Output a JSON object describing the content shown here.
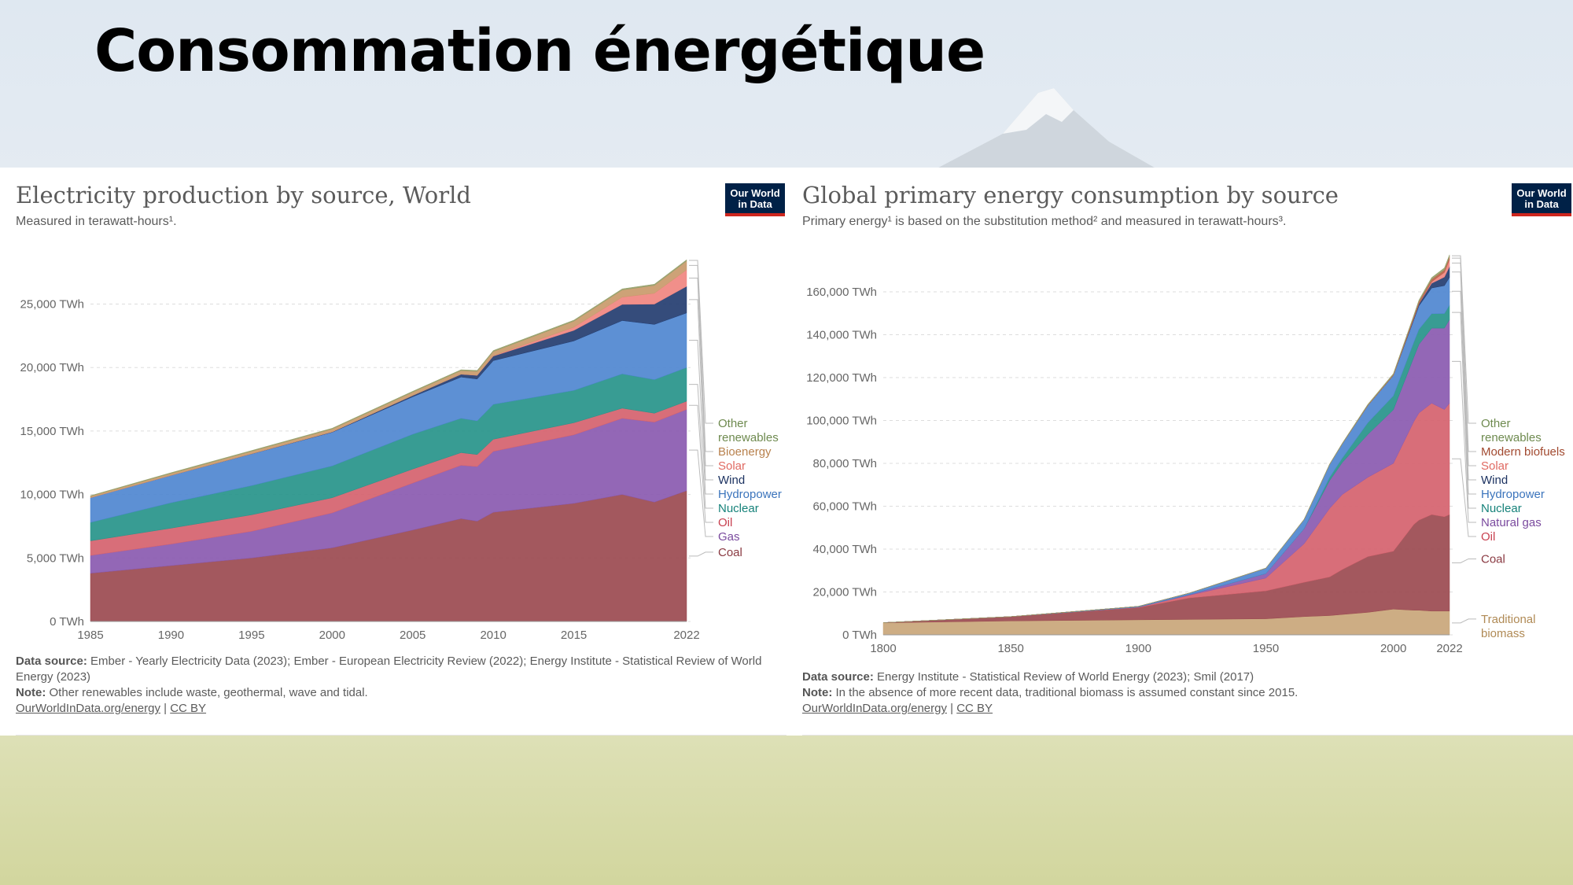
{
  "slide_title": "Consommation énergétique",
  "logo_text": "Our World in Data",
  "chart_data": [
    {
      "type": "area",
      "stacked": true,
      "title": "Electricity production by source, World",
      "subtitle": "Measured in terawatt-hours¹.",
      "y_unit": "TWh",
      "ylim": [
        0,
        29000
      ],
      "xlim": [
        1985,
        2022
      ],
      "x_ticks": [
        "1985",
        "1990",
        "1995",
        "2000",
        "2005",
        "2010",
        "2015",
        "2022"
      ],
      "y_ticks": [
        "0 TWh",
        "5,000 TWh",
        "10,000 TWh",
        "15,000 TWh",
        "20,000 TWh",
        "25,000 TWh"
      ],
      "y_tick_values": [
        0,
        5000,
        10000,
        15000,
        20000,
        25000
      ],
      "x": [
        1985,
        1990,
        1995,
        2000,
        2005,
        2008,
        2009,
        2010,
        2015,
        2018,
        2020,
        2022
      ],
      "series": [
        {
          "name": "Coal",
          "color": "#9b4a50",
          "values": [
            3800,
            4400,
            5000,
            5800,
            7200,
            8100,
            7900,
            8600,
            9300,
            10000,
            9400,
            10300
          ]
        },
        {
          "name": "Gas",
          "color": "#8a5ab0",
          "values": [
            1400,
            1700,
            2100,
            2750,
            3700,
            4200,
            4300,
            4800,
            5400,
            6000,
            6300,
            6400
          ]
        },
        {
          "name": "Oil",
          "color": "#d5626e",
          "values": [
            1150,
            1250,
            1300,
            1200,
            1100,
            1000,
            950,
            950,
            950,
            800,
            700,
            650
          ]
        },
        {
          "name": "Nuclear",
          "color": "#27948a",
          "values": [
            1450,
            2000,
            2300,
            2500,
            2750,
            2700,
            2650,
            2750,
            2550,
            2700,
            2650,
            2650
          ]
        },
        {
          "name": "Hydropower",
          "color": "#4f87d0",
          "values": [
            1950,
            2150,
            2500,
            2650,
            2950,
            3250,
            3300,
            3450,
            3900,
            4200,
            4350,
            4300
          ]
        },
        {
          "name": "Wind",
          "color": "#243d70",
          "values": [
            0,
            5,
            10,
            30,
            100,
            220,
            280,
            350,
            830,
            1270,
            1600,
            2100
          ]
        },
        {
          "name": "Solar",
          "color": "#f08580",
          "values": [
            0,
            0,
            0,
            1,
            4,
            12,
            20,
            30,
            250,
            580,
            850,
            1300
          ]
        },
        {
          "name": "Bioenergy",
          "color": "#c99a6b",
          "values": [
            120,
            160,
            200,
            230,
            260,
            280,
            300,
            330,
            470,
            560,
            620,
            690
          ]
        },
        {
          "name": "Other renewables",
          "color": "#96a06a",
          "values": [
            40,
            50,
            55,
            60,
            65,
            70,
            75,
            80,
            85,
            90,
            95,
            100
          ]
        }
      ],
      "legend": [
        "Other renewables",
        "Bioenergy",
        "Solar",
        "Wind",
        "Hydropower",
        "Nuclear",
        "Oil",
        "Gas",
        "Coal"
      ],
      "data_source_label": "Data source:",
      "data_source": "Ember - Yearly Electricity Data (2023); Ember - European Electricity Review (2022); Energy Institute - Statistical Review of World Energy (2023)",
      "note_label": "Note:",
      "note": "Other renewables include waste, geothermal, wave and tidal.",
      "link": "OurWorldInData.org/energy",
      "license": "CC BY"
    },
    {
      "type": "area",
      "stacked": true,
      "title": "Global primary energy consumption by source",
      "subtitle": "Primary energy¹ is based on the substitution method² and measured in terawatt-hours³.",
      "y_unit": "TWh",
      "ylim": [
        0,
        178000
      ],
      "xlim": [
        1800,
        2022
      ],
      "x_ticks": [
        "1800",
        "1850",
        "1900",
        "1950",
        "2000",
        "2022"
      ],
      "y_ticks": [
        "0 TWh",
        "20,000 TWh",
        "40,000 TWh",
        "60,000 TWh",
        "80,000 TWh",
        "100,000 TWh",
        "120,000 TWh",
        "140,000 TWh",
        "160,000 TWh"
      ],
      "y_tick_values": [
        0,
        20000,
        40000,
        60000,
        80000,
        100000,
        120000,
        140000,
        160000
      ],
      "x": [
        1800,
        1850,
        1900,
        1920,
        1950,
        1965,
        1975,
        1980,
        1990,
        2000,
        2008,
        2010,
        2015,
        2020,
        2022
      ],
      "series": [
        {
          "name": "Traditional biomass",
          "color": "#c9a679",
          "values": [
            5600,
            6500,
            7000,
            7200,
            7500,
            8500,
            9000,
            9500,
            10500,
            12000,
            11500,
            11500,
            11100,
            11100,
            11100
          ]
        },
        {
          "name": "Coal",
          "color": "#9b4a50",
          "values": [
            100,
            2000,
            5700,
            10000,
            13000,
            16000,
            18000,
            21000,
            26000,
            27000,
            40000,
            42000,
            45000,
            44000,
            45000
          ]
        },
        {
          "name": "Oil",
          "color": "#d5626e",
          "values": [
            0,
            0,
            200,
            1300,
            6000,
            18000,
            32000,
            35000,
            37000,
            41000,
            48000,
            50000,
            52000,
            50000,
            52000
          ]
        },
        {
          "name": "Natural gas",
          "color": "#8a5ab0",
          "values": [
            0,
            0,
            100,
            300,
            2100,
            7000,
            13000,
            15000,
            20000,
            25000,
            30000,
            32000,
            35000,
            38000,
            39000
          ]
        },
        {
          "name": "Nuclear",
          "color": "#27948a",
          "values": [
            0,
            0,
            0,
            0,
            0,
            50,
            1500,
            2000,
            5500,
            6500,
            7000,
            7000,
            6700,
            6800,
            6700
          ]
        },
        {
          "name": "Hydropower",
          "color": "#4f87d0",
          "values": [
            0,
            0,
            300,
            700,
            2500,
            4200,
            6000,
            6700,
            8000,
            9500,
            10500,
            11000,
            12000,
            13000,
            13000
          ]
        },
        {
          "name": "Wind",
          "color": "#243d70",
          "values": [
            0,
            0,
            0,
            0,
            0,
            0,
            0,
            0,
            10,
            80,
            600,
            900,
            2200,
            4000,
            5000
          ]
        },
        {
          "name": "Solar",
          "color": "#f08580",
          "values": [
            0,
            0,
            0,
            0,
            0,
            0,
            0,
            0,
            0,
            3,
            40,
            80,
            700,
            2200,
            3300
          ]
        },
        {
          "name": "Modern biofuels",
          "color": "#b96146",
          "values": [
            0,
            0,
            0,
            0,
            0,
            0,
            0,
            20,
            180,
            300,
            900,
            1000,
            1200,
            1200,
            1300
          ]
        },
        {
          "name": "Other renewables",
          "color": "#96a06a",
          "values": [
            0,
            0,
            0,
            20,
            100,
            200,
            250,
            300,
            400,
            500,
            600,
            700,
            800,
            900,
            900
          ]
        }
      ],
      "legend": [
        "Other renewables",
        "Modern biofuels",
        "Solar",
        "Wind",
        "Hydropower",
        "Nuclear",
        "Natural gas",
        "Oil",
        "Coal",
        "Traditional biomass"
      ],
      "data_source_label": "Data source:",
      "data_source": "Energy Institute - Statistical Review of World Energy (2023); Smil (2017)",
      "note_label": "Note:",
      "note": "In the absence of more recent data, traditional biomass is assumed constant since 2015.",
      "link": "OurWorldInData.org/energy",
      "license": "CC BY"
    }
  ]
}
